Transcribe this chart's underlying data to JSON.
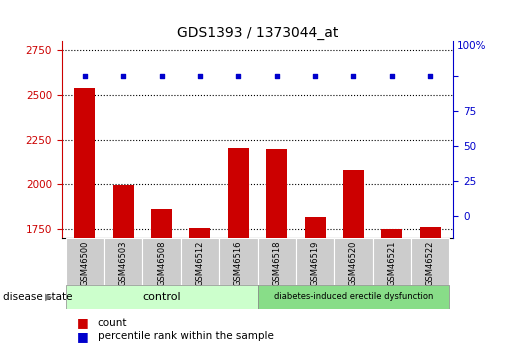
{
  "title": "GDS1393 / 1373044_at",
  "samples": [
    "GSM46500",
    "GSM46503",
    "GSM46508",
    "GSM46512",
    "GSM46516",
    "GSM46518",
    "GSM46519",
    "GSM46520",
    "GSM46521",
    "GSM46522"
  ],
  "counts": [
    2540,
    1995,
    1860,
    1755,
    2205,
    2200,
    1820,
    2080,
    1752,
    1760
  ],
  "percentile": [
    100,
    100,
    100,
    100,
    100,
    100,
    100,
    100,
    100,
    100
  ],
  "ylim_left": [
    1700,
    2800
  ],
  "ylim_right": [
    -15.625,
    125
  ],
  "yticks_left": [
    1750,
    2000,
    2250,
    2500,
    2750
  ],
  "yticks_right": [
    0,
    25,
    50,
    75,
    100
  ],
  "n_control": 5,
  "n_disease": 5,
  "control_label": "control",
  "disease_label": "diabetes-induced erectile dysfunction",
  "bar_color": "#cc0000",
  "scatter_color": "#0000cc",
  "control_bg": "#ccffcc",
  "disease_bg": "#88dd88",
  "sample_bg": "#cccccc",
  "left_axis_color": "#cc0000",
  "right_axis_color": "#0000cc",
  "legend_count_label": "count",
  "legend_percentile_label": "percentile rank within the sample",
  "disease_state_label": "disease state",
  "title_fontsize": 10,
  "tick_fontsize": 7.5,
  "sample_fontsize": 6,
  "group_fontsize": 8,
  "bar_width": 0.55
}
